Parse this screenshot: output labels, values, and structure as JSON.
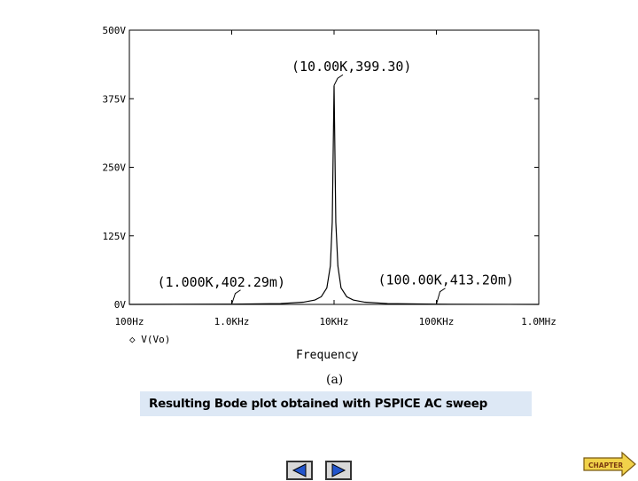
{
  "chart_data": {
    "type": "line",
    "xscale": "log",
    "xlim": [
      100,
      1000000
    ],
    "ylim": [
      0,
      500
    ],
    "x_ticks": [
      "100Hz",
      "1.0KHz",
      "10KHz",
      "100KHz",
      "1.0MHz"
    ],
    "y_ticks": [
      "500V",
      "375V",
      "250V",
      "125V",
      "0V"
    ],
    "xlabel": "Frequency",
    "legend": "◇ V(Vo)",
    "series": [
      {
        "name": "V(Vo)",
        "x": [
          100,
          1000,
          3000,
          5000,
          6500,
          7500,
          8500,
          9200,
          9600,
          10000,
          10400,
          10900,
          11700,
          13300,
          15400,
          20000,
          33300,
          100000,
          500000,
          1000000
        ],
        "y": [
          0.04,
          0.4,
          1.5,
          4,
          8,
          14,
          30,
          70,
          150,
          399.3,
          150,
          70,
          30,
          14,
          8,
          4,
          1.5,
          0.41,
          0.08,
          0.04
        ]
      }
    ],
    "annotations": [
      {
        "x": 10000,
        "y": 399.3,
        "text": "(10.00K,399.30)"
      },
      {
        "x": 1000,
        "y": 0.40229,
        "text": "(1.000K,402.29m)"
      },
      {
        "x": 100000,
        "y": 0.4132,
        "text": "(100.00K,413.20m)"
      }
    ]
  },
  "figure_label": "(a)",
  "caption": "Resulting Bode plot obtained with PSPICE AC sweep",
  "nav": {
    "index_label": "CHAPTER"
  },
  "colors": {
    "caption_bg": "#dde8f5",
    "nav_arrow": "#2255cc",
    "nav_bg": "#d8d8d8"
  }
}
